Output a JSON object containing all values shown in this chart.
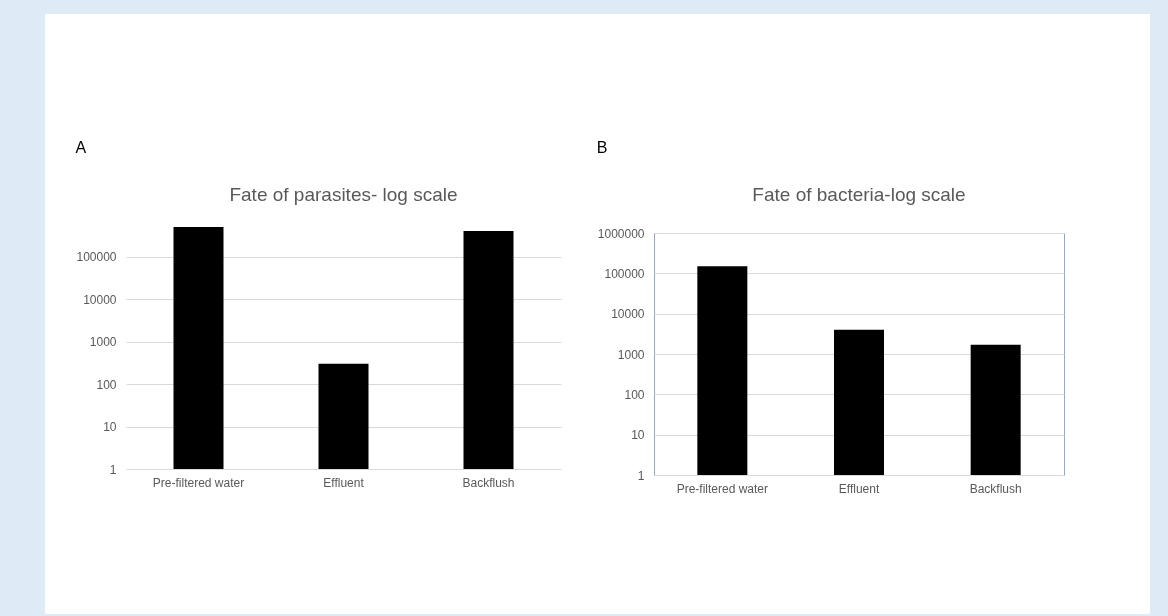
{
  "chart_data": [
    {
      "type": "bar",
      "title": "Fate of parasites- log scale",
      "annotations": [
        "A"
      ],
      "categories": [
        "Pre-filtered water",
        "Effluent",
        "Backflush"
      ],
      "values": [
        500000,
        300,
        400000
      ],
      "color": "#000000",
      "log": true,
      "ylim": [
        1,
        500000
      ],
      "yticks": [
        1,
        10,
        100,
        1000,
        10000,
        100000
      ],
      "grid": "y"
    },
    {
      "type": "bar",
      "title": "Fate of bacteria-log scale",
      "annotations": [
        "B"
      ],
      "categories": [
        "Pre-filtered water",
        "Effluent",
        "Backflush"
      ],
      "values": [
        150000,
        4000,
        1700
      ],
      "color": "#000000",
      "log": true,
      "ylim": [
        1,
        1000000
      ],
      "yticks": [
        1,
        10,
        100,
        1000,
        10000,
        100000,
        1000000
      ],
      "grid": "y"
    }
  ]
}
